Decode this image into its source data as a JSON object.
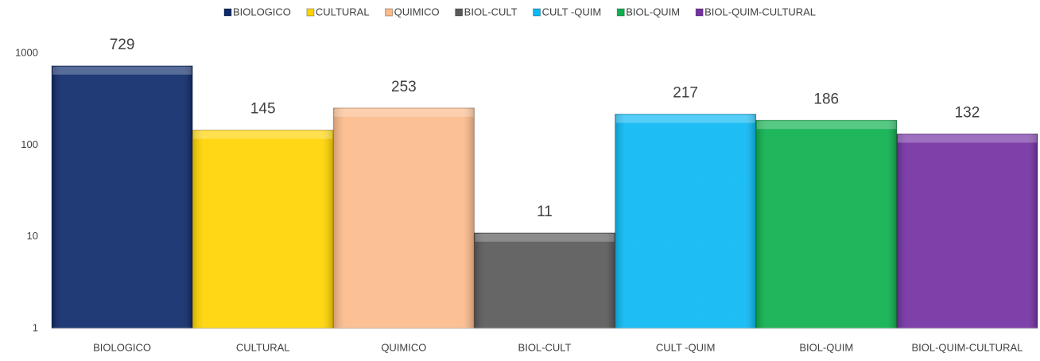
{
  "chart_data": {
    "type": "bar",
    "categories": [
      "BIOLOGICO",
      "CULTURAL",
      "QUIMICO",
      "BIOL-CULT",
      "CULT -QUIM",
      "BIOL-QUIM",
      "BIOL-QUIM-CULTURAL"
    ],
    "values": [
      729,
      145,
      253,
      11,
      217,
      186,
      132
    ],
    "colors": [
      "#0e2a6a",
      "#ffd400",
      "#fbba8a",
      "#595959",
      "#0bb9f4",
      "#0db14e",
      "#7331a3"
    ],
    "ylim": [
      1,
      1000
    ],
    "yticks": [
      1,
      10,
      100,
      1000
    ],
    "log_scale": true,
    "grid": false,
    "legend": "top"
  }
}
